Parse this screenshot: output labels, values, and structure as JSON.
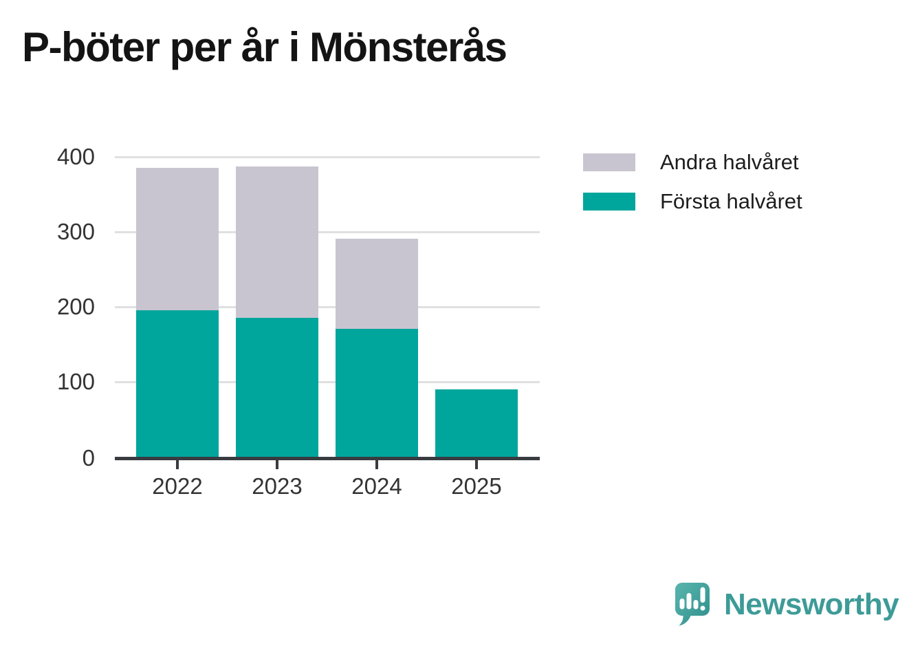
{
  "title": "P-böter per år i Mönsterås",
  "legend": {
    "items": [
      {
        "label": "Andra halvåret",
        "series_key": "second_half"
      },
      {
        "label": "Första halvåret",
        "series_key": "first_half"
      }
    ]
  },
  "colors": {
    "first_half": "#00a59c",
    "second_half": "#c8c5d0",
    "gridline": "#e0e0e0",
    "axis": "#383b40",
    "tick_text": "#333333",
    "title_text": "#141414",
    "legend_text": "#1d1d1d",
    "logo_teal": "#3d9b97",
    "logo_gradient_start": "#5ab5ae",
    "logo_gradient_end": "#2e8e8b",
    "background": "#ffffff"
  },
  "chart_data": {
    "type": "bar",
    "stacked": true,
    "title": "P-böter per år i Mönsterås",
    "categories": [
      "2022",
      "2023",
      "2024",
      "2025"
    ],
    "series": [
      {
        "name": "Första halvåret",
        "color_key": "first_half",
        "values": [
          195,
          185,
          171,
          90
        ]
      },
      {
        "name": "Andra halvåret",
        "color_key": "second_half",
        "values": [
          190,
          202,
          120,
          0
        ]
      }
    ],
    "totals": [
      385,
      387,
      291,
      90
    ],
    "xlabel": "",
    "ylabel": "",
    "ylim": [
      0,
      400
    ],
    "yticks": [
      0,
      100,
      200,
      300,
      400
    ],
    "grid": "horizontal",
    "legend_position": "top-right"
  },
  "footer": {
    "brand": "Newsworthy",
    "logo_icon": "speech-bubble-bar-chart-icon"
  }
}
